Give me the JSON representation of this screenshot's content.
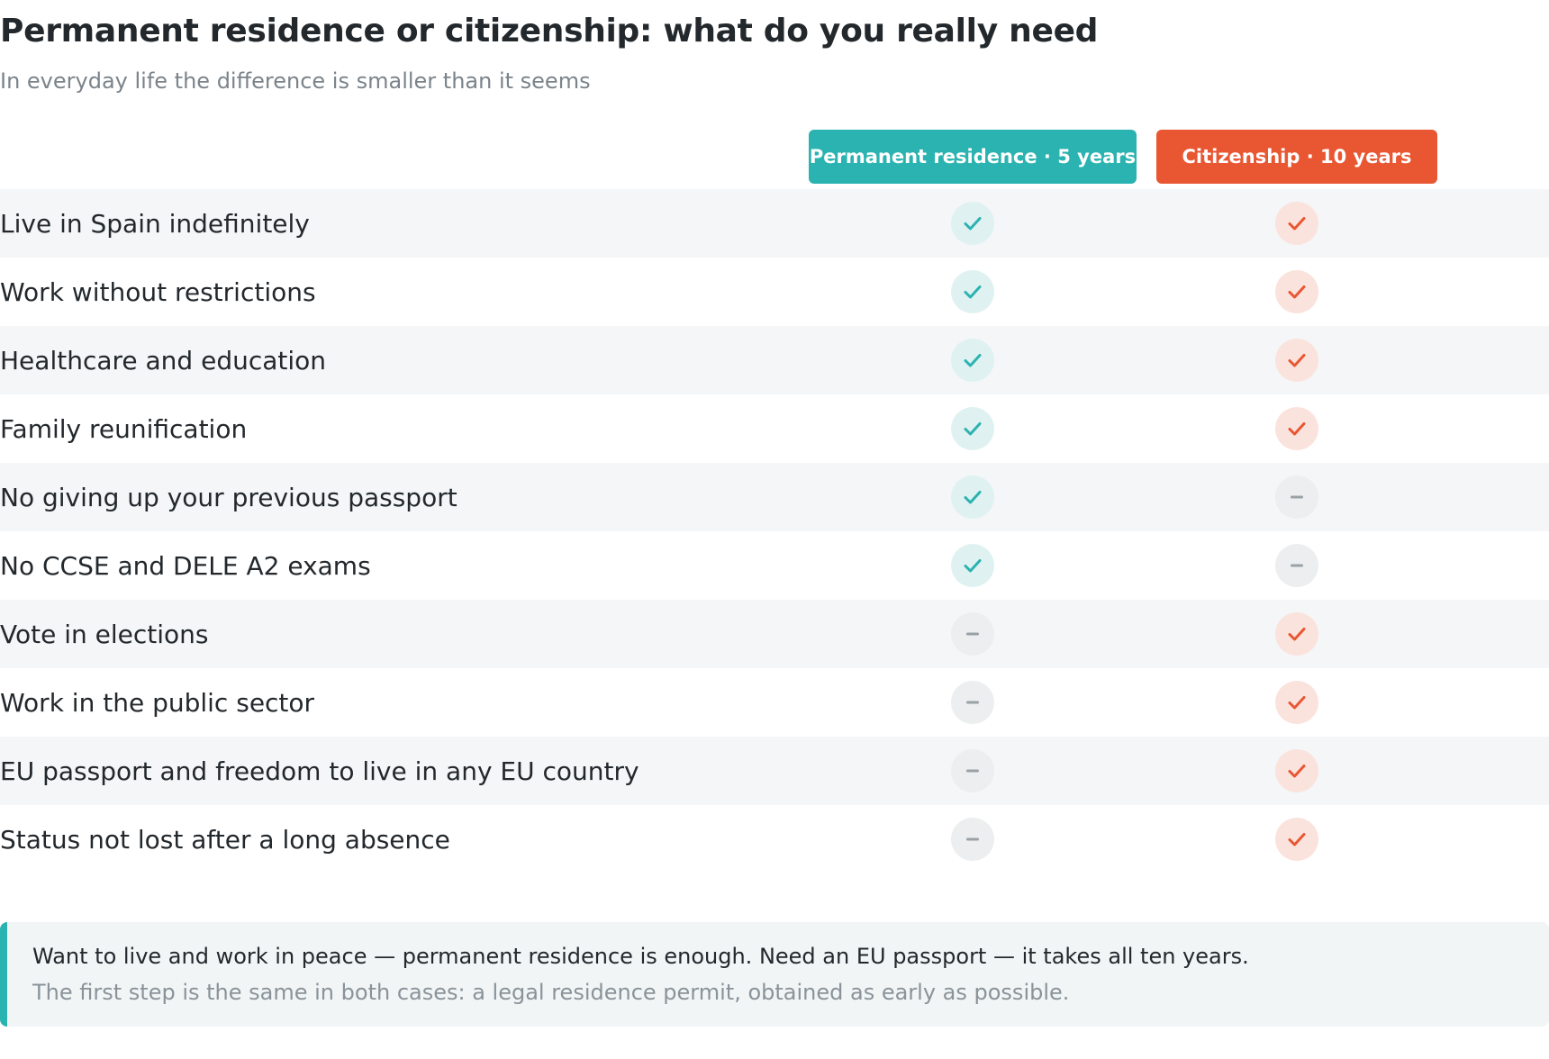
{
  "title": "Permanent residence or citizenship: what do you really need",
  "subtitle": "In everyday life the difference is smaller than it seems",
  "columns": {
    "permanent_residence": "Permanent residence · 5 years",
    "citizenship": "Citizenship · 10 years"
  },
  "colors": {
    "permanent_residence": "#2ab3b1",
    "citizenship": "#e95632",
    "unavailable": "#9aa1a6"
  },
  "rows": [
    {
      "label": "Live in Spain indefinitely",
      "permanent_residence": "check-icon",
      "citizenship": "check-icon"
    },
    {
      "label": "Work without restrictions",
      "permanent_residence": "check-icon",
      "citizenship": "check-icon"
    },
    {
      "label": "Healthcare and education",
      "permanent_residence": "check-icon",
      "citizenship": "check-icon"
    },
    {
      "label": "Family reunification",
      "permanent_residence": "check-icon",
      "citizenship": "check-icon"
    },
    {
      "label": "No giving up your previous passport",
      "permanent_residence": "check-icon",
      "citizenship": "dash-icon"
    },
    {
      "label": "No CCSE and DELE A2 exams",
      "permanent_residence": "check-icon",
      "citizenship": "dash-icon"
    },
    {
      "label": "Vote in elections",
      "permanent_residence": "dash-icon",
      "citizenship": "check-icon"
    },
    {
      "label": "Work in the public sector",
      "permanent_residence": "dash-icon",
      "citizenship": "check-icon"
    },
    {
      "label": "EU passport and freedom to live in any EU country",
      "permanent_residence": "dash-icon",
      "citizenship": "check-icon"
    },
    {
      "label": "Status not lost after a long absence",
      "permanent_residence": "dash-icon",
      "citizenship": "check-icon"
    }
  ],
  "note": {
    "main": "Want to live and work in peace — permanent residence is enough. Need an EU passport — it takes all ten years.",
    "sub": "The first step is the same in both cases: a legal residence permit, obtained as early as possible."
  }
}
